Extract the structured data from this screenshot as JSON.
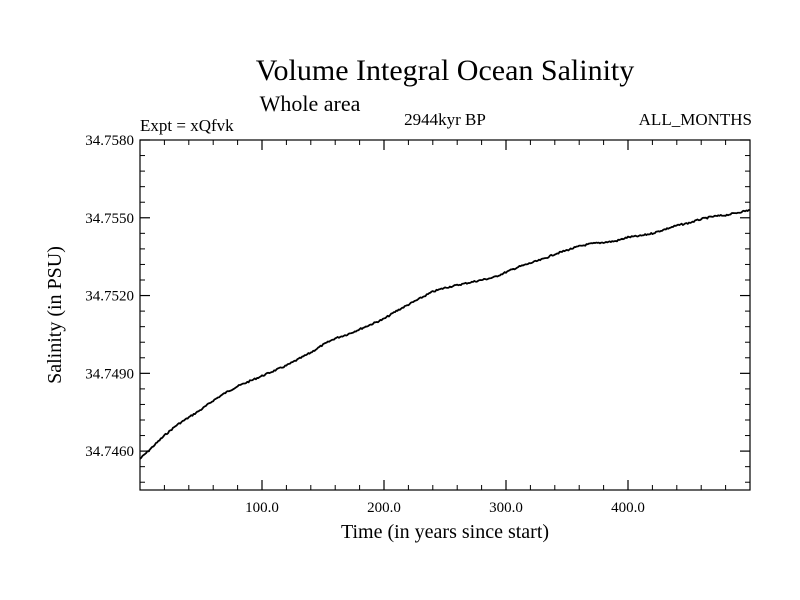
{
  "chart_data": {
    "type": "line",
    "title": "Volume Integral Ocean Salinity",
    "subtitle": "Whole area",
    "left_label": "Expt = xQfvk",
    "center_label": "2944kyr BP",
    "right_label": "ALL_MONTHS",
    "xlabel": "Time (in years since start)",
    "ylabel": "Salinity (in PSU)",
    "xlim": [
      0,
      500
    ],
    "ylim": [
      34.7445,
      34.758
    ],
    "xticks": [
      100,
      200,
      300,
      400
    ],
    "xtick_labels": [
      "100.0",
      "200.0",
      "300.0",
      "400.0"
    ],
    "yticks": [
      34.746,
      34.749,
      34.752,
      34.755,
      34.758
    ],
    "ytick_labels": [
      "34.7460",
      "34.7490",
      "34.7520",
      "34.7550",
      "34.7580"
    ],
    "series": [
      {
        "name": "Salinity",
        "color": "#000000",
        "x": [
          0,
          10,
          20,
          30,
          40,
          50,
          60,
          70,
          80,
          90,
          100,
          110,
          120,
          130,
          140,
          150,
          160,
          170,
          180,
          190,
          200,
          210,
          220,
          230,
          240,
          250,
          260,
          270,
          280,
          290,
          300,
          310,
          320,
          330,
          340,
          350,
          360,
          370,
          380,
          390,
          400,
          410,
          420,
          430,
          440,
          450,
          460,
          470,
          480,
          490,
          500
        ],
        "y": [
          34.7457,
          34.74615,
          34.7466,
          34.747,
          34.7473,
          34.7476,
          34.74795,
          34.74825,
          34.7485,
          34.7487,
          34.7489,
          34.7491,
          34.7493,
          34.74955,
          34.7498,
          34.7501,
          34.75035,
          34.7505,
          34.7507,
          34.7509,
          34.7511,
          34.7514,
          34.75165,
          34.7519,
          34.75215,
          34.7523,
          34.7524,
          34.7525,
          34.7526,
          34.7527,
          34.7529,
          34.7531,
          34.75325,
          34.7534,
          34.7536,
          34.75375,
          34.7539,
          34.754,
          34.75405,
          34.7541,
          34.75425,
          34.7543,
          34.7544,
          34.75455,
          34.7547,
          34.7548,
          34.75495,
          34.75505,
          34.7551,
          34.7552,
          34.7553
        ]
      }
    ]
  }
}
